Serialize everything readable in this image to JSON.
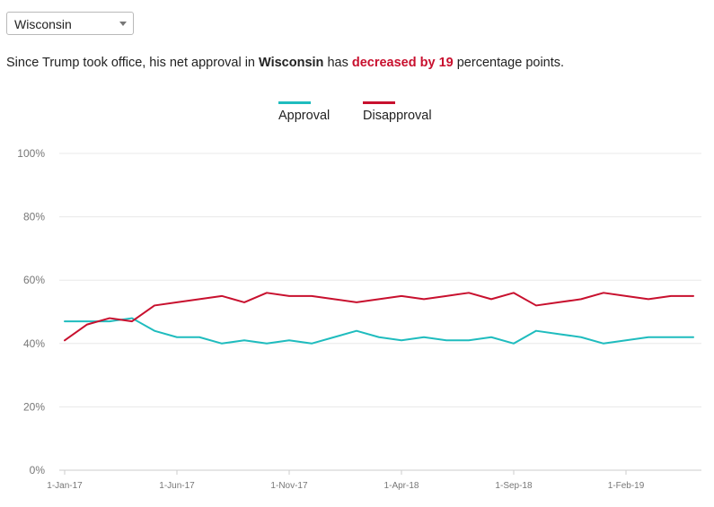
{
  "selector": {
    "value": "Wisconsin"
  },
  "summary": {
    "prefix": "Since Trump took office, his net approval in ",
    "state": "Wisconsin",
    "middle": " has ",
    "change": "decreased by 19",
    "suffix": " percentage points."
  },
  "colors": {
    "approval": "#1fbcbe",
    "disapproval": "#c8102e",
    "grid": "#e8e8e8",
    "text": "#222222"
  },
  "chart_data": {
    "type": "line",
    "title": "",
    "xlabel": "",
    "ylabel": "",
    "ylim": [
      0,
      100
    ],
    "y_ticks": [
      0,
      20,
      40,
      60,
      80,
      100
    ],
    "y_tick_labels": [
      "0%",
      "20%",
      "40%",
      "60%",
      "80%",
      "100%"
    ],
    "x_tick_labels": [
      "1-Jan-17",
      "1-Jun-17",
      "1-Nov-17",
      "1-Apr-18",
      "1-Sep-18",
      "1-Feb-19"
    ],
    "x_tick_index": [
      0,
      5,
      10,
      15,
      20,
      25
    ],
    "x": [
      "Jan-17",
      "Feb-17",
      "Mar-17",
      "Apr-17",
      "May-17",
      "Jun-17",
      "Jul-17",
      "Aug-17",
      "Sep-17",
      "Oct-17",
      "Nov-17",
      "Dec-17",
      "Jan-18",
      "Feb-18",
      "Mar-18",
      "Apr-18",
      "May-18",
      "Jun-18",
      "Jul-18",
      "Aug-18",
      "Sep-18",
      "Oct-18",
      "Nov-18",
      "Dec-18",
      "Jan-19",
      "Feb-19",
      "Mar-19",
      "Apr-19",
      "May-19"
    ],
    "legend_position": "top-center",
    "grid": true,
    "series": [
      {
        "name": "Approval",
        "color": "#1fbcbe",
        "values": [
          47,
          47,
          47,
          48,
          44,
          42,
          42,
          40,
          41,
          40,
          41,
          40,
          42,
          44,
          42,
          41,
          42,
          41,
          41,
          42,
          40,
          44,
          43,
          42,
          40,
          41,
          42,
          42,
          42
        ]
      },
      {
        "name": "Disapproval",
        "color": "#c8102e",
        "values": [
          41,
          46,
          48,
          47,
          52,
          53,
          54,
          55,
          53,
          56,
          55,
          55,
          54,
          53,
          54,
          55,
          54,
          55,
          56,
          54,
          56,
          52,
          53,
          54,
          56,
          55,
          54,
          55,
          55
        ]
      }
    ]
  }
}
